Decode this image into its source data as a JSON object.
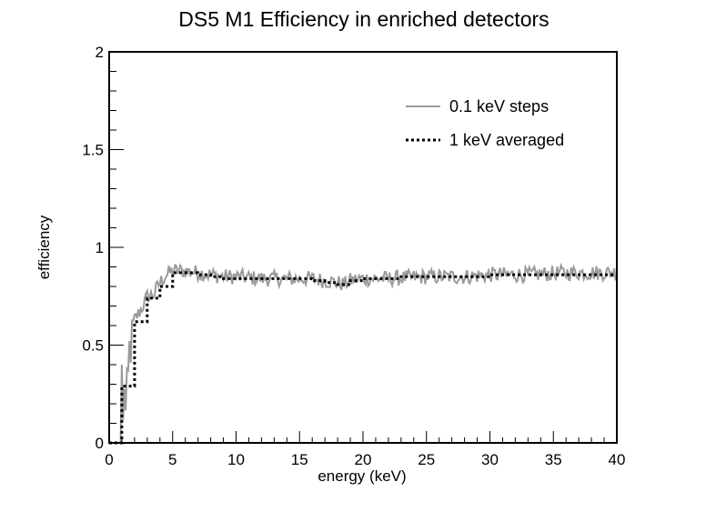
{
  "chart_data": {
    "type": "line",
    "title": "DS5 M1 Efficiency in enriched detectors",
    "xlabel": "energy (keV)",
    "ylabel": "efficiency",
    "xlim": [
      0,
      40
    ],
    "ylim": [
      0,
      2
    ],
    "x_ticks": [
      "0",
      "5",
      "10",
      "15",
      "20",
      "25",
      "30",
      "35",
      "40"
    ],
    "y_ticks": [
      "0",
      "0.5",
      "1",
      "1.5",
      "2"
    ],
    "grid": false,
    "legend_position": "top-right",
    "series": [
      {
        "name": "0.1 keV steps",
        "style": "solid",
        "color": "#9a9a9a",
        "x": [
          0.0,
          0.9,
          1.0,
          1.1,
          1.2,
          1.3,
          1.4,
          1.5,
          1.6,
          1.7,
          1.8,
          1.9,
          2.0,
          2.5,
          3.0,
          3.5,
          4.0,
          4.5,
          5.0,
          6.0,
          7.0,
          8.0,
          9.0,
          10.0,
          12.0,
          14.0,
          16.0,
          17.0,
          18.0,
          18.5,
          19.0,
          20.0,
          22.0,
          25.0,
          28.0,
          30.0,
          33.0,
          36.0,
          40.0
        ],
        "y": [
          0.0,
          0.0,
          0.4,
          0.1,
          0.3,
          0.15,
          0.32,
          0.35,
          0.5,
          0.45,
          0.58,
          0.6,
          0.63,
          0.68,
          0.75,
          0.76,
          0.82,
          0.86,
          0.88,
          0.88,
          0.87,
          0.86,
          0.85,
          0.85,
          0.84,
          0.84,
          0.84,
          0.83,
          0.82,
          0.81,
          0.83,
          0.84,
          0.84,
          0.85,
          0.85,
          0.86,
          0.86,
          0.87,
          0.87
        ]
      },
      {
        "name": "1 keV averaged",
        "style": "dotted",
        "color": "#000000",
        "x": [
          0,
          1,
          2,
          3,
          4,
          5,
          6,
          7,
          8,
          9,
          10,
          11,
          12,
          13,
          14,
          15,
          16,
          17,
          18,
          19,
          20,
          21,
          22,
          23,
          24,
          25,
          26,
          27,
          28,
          29,
          30,
          31,
          32,
          33,
          34,
          35,
          36,
          37,
          38,
          39
        ],
        "y": [
          0.0,
          0.29,
          0.62,
          0.74,
          0.8,
          0.87,
          0.87,
          0.86,
          0.85,
          0.84,
          0.84,
          0.84,
          0.84,
          0.84,
          0.84,
          0.84,
          0.83,
          0.82,
          0.81,
          0.83,
          0.84,
          0.84,
          0.84,
          0.85,
          0.85,
          0.85,
          0.85,
          0.85,
          0.85,
          0.85,
          0.86,
          0.86,
          0.86,
          0.86,
          0.86,
          0.86,
          0.86,
          0.86,
          0.86,
          0.86
        ]
      }
    ]
  }
}
